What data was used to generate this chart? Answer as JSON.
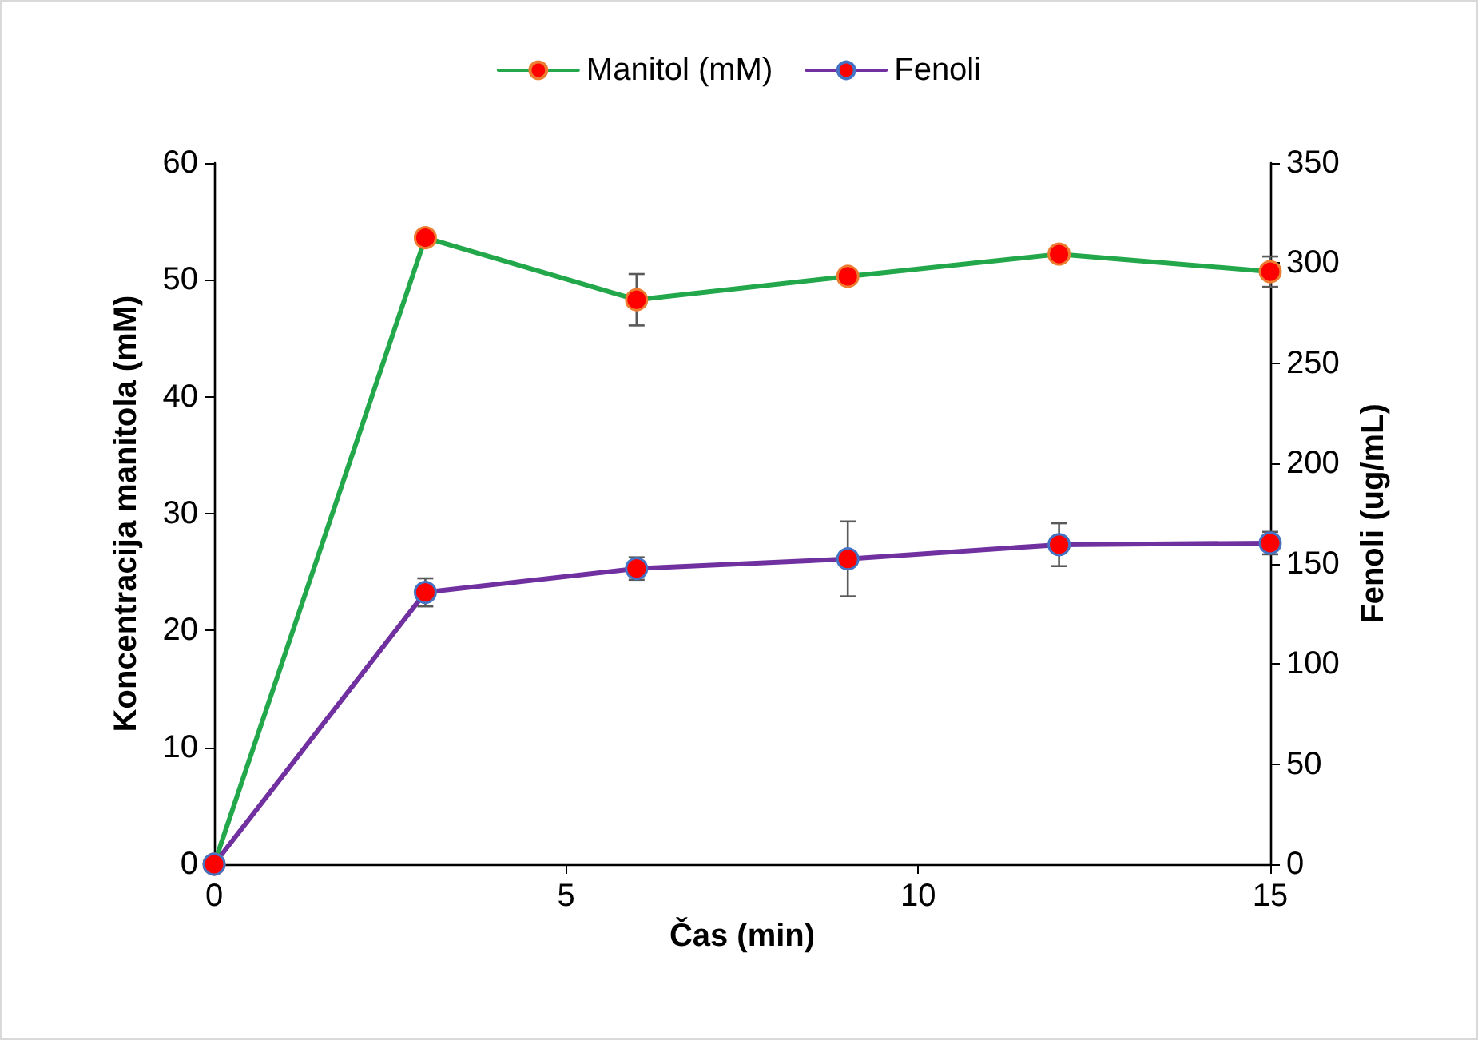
{
  "chart_data": {
    "type": "line",
    "xlabel": "Čas (min)",
    "ylabel": "Koncentracija manitola (mM)",
    "y2label": "Fenoli (ug/mL)",
    "x": [
      0,
      3,
      6,
      9,
      12,
      15
    ],
    "series": [
      {
        "name": "Manitol (mM)",
        "color": "#22a84a",
        "values": [
          0,
          53.6,
          48.3,
          50.3,
          52.2,
          50.7
        ],
        "errors": [
          null,
          null,
          2.2,
          null,
          null,
          1.3
        ]
      },
      {
        "name": "Fenoli",
        "color": "#7030a0",
        "axis": "y2",
        "values": [
          0,
          135.7,
          147.6,
          152.4,
          159.5,
          160.3
        ],
        "errors": [
          null,
          7,
          5.6,
          18.7,
          10.7,
          5.6
        ]
      }
    ],
    "xlim": [
      0,
      15
    ],
    "xticks": [
      0,
      5,
      10,
      15
    ],
    "ylim": [
      0,
      60
    ],
    "yticks": [
      0,
      10,
      20,
      30,
      40,
      50,
      60
    ],
    "y2lim": [
      0,
      350
    ],
    "y2ticks": [
      0,
      50,
      100,
      150,
      200,
      250,
      300,
      350
    ],
    "grid": false,
    "legend": "top",
    "marker": "circle",
    "line_style": "solid"
  }
}
